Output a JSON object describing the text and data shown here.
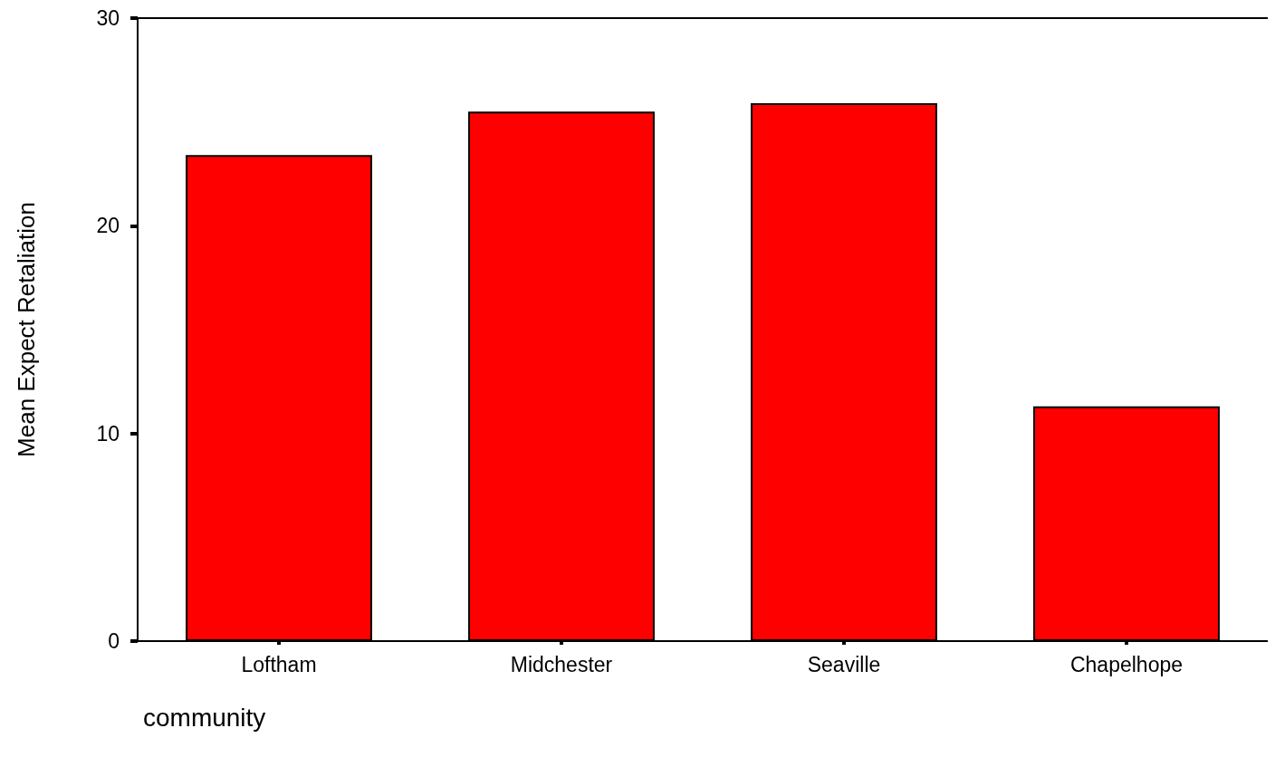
{
  "chart_data": {
    "type": "bar",
    "xlabel": "community",
    "ylabel": "Mean Expect Retaliation",
    "categories": [
      "Loftham",
      "Midchester",
      "Seaville",
      "Chapelhope"
    ],
    "values": [
      23.4,
      25.5,
      25.9,
      11.3
    ],
    "color": "#ff0000",
    "ylim": [
      0,
      30
    ],
    "yticks": [
      0,
      10,
      20,
      30
    ],
    "grid": false
  }
}
